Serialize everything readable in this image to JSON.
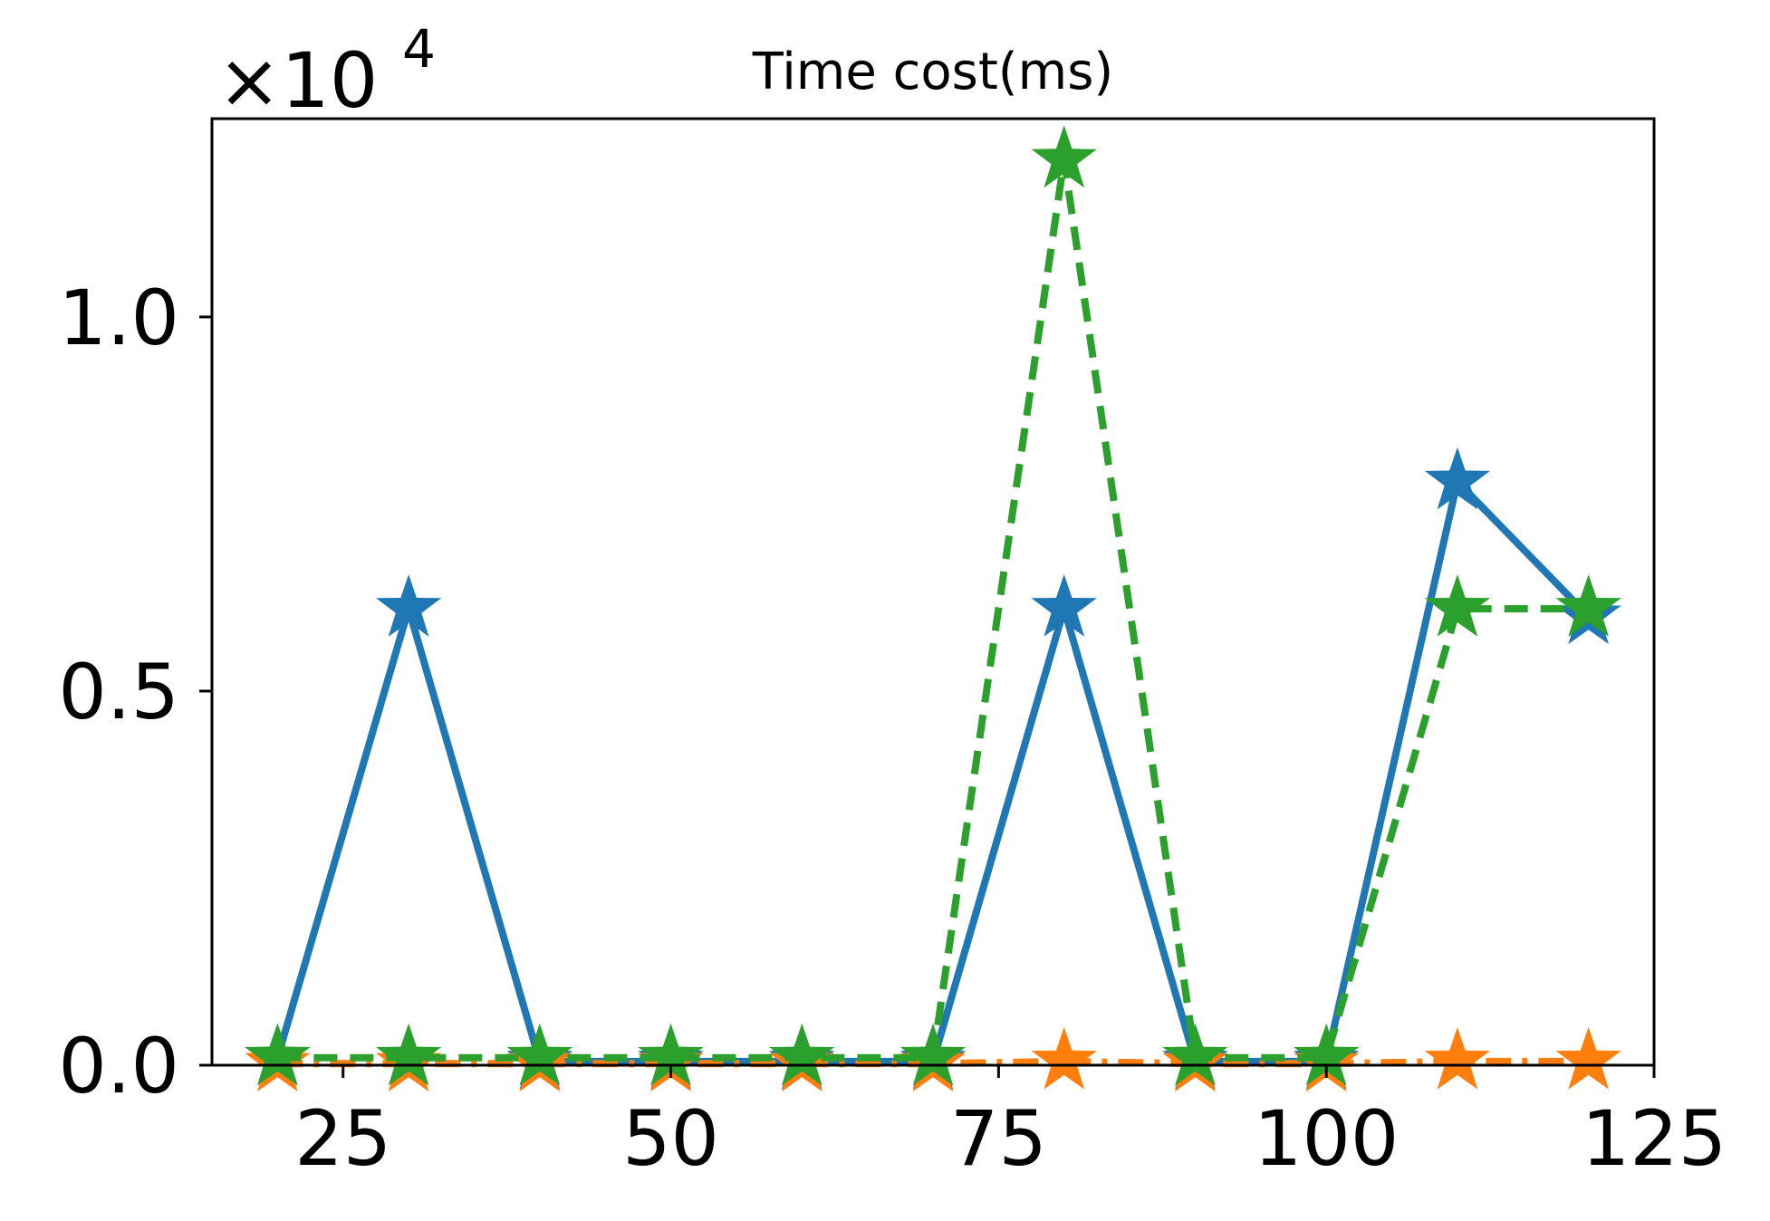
{
  "chart_data": {
    "type": "line",
    "title": "Time cost(ms)",
    "xlabel": "",
    "ylabel": "",
    "xlim": [
      15,
      125
    ],
    "ylim": [
      0,
      1.265
    ],
    "y_scale_factor": "×10",
    "y_scale_exponent": "4",
    "x_ticks": [
      25,
      50,
      75,
      100,
      125
    ],
    "x_tick_labels": [
      "25",
      "50",
      "75",
      "100",
      "125"
    ],
    "y_ticks": [
      0.0,
      0.5,
      1.0
    ],
    "y_tick_labels": [
      "0.0",
      "0.5",
      "1.0"
    ],
    "grid": false,
    "legend": "none",
    "x": [
      20,
      30,
      40,
      50,
      60,
      70,
      80,
      90,
      100,
      110,
      120
    ],
    "series": [
      {
        "values": [
          0.01,
          0.61,
          0.005,
          0.005,
          0.005,
          0.005,
          0.61,
          0.005,
          0.005,
          0.78,
          0.6
        ],
        "color": "#1f77b4",
        "line_style": "solid",
        "marker": "star"
      },
      {
        "values": [
          0.002,
          0.002,
          0.002,
          0.002,
          0.002,
          0.002,
          0.005,
          0.002,
          0.002,
          0.005,
          0.005
        ],
        "color": "#ff7f0e",
        "line_style": "dashdot",
        "marker": "star"
      },
      {
        "values": [
          0.01,
          0.01,
          0.01,
          0.01,
          0.01,
          0.01,
          1.21,
          0.01,
          0.01,
          0.61,
          0.61
        ],
        "color": "#2ca02c",
        "line_style": "dashed",
        "marker": "star"
      }
    ]
  }
}
